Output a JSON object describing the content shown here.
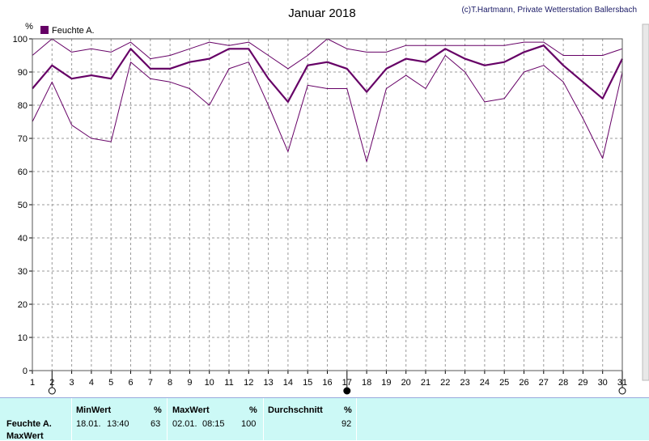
{
  "title": "Januar 2018",
  "credit": "(c)T.Hartmann, Private Wetterstation Ballersbach",
  "unit_label": "%",
  "legend": {
    "label": "Feuchte A.",
    "color": "#660066"
  },
  "chart_data": {
    "type": "line",
    "x": [
      1,
      2,
      3,
      4,
      5,
      6,
      7,
      8,
      9,
      10,
      11,
      12,
      13,
      14,
      15,
      16,
      17,
      18,
      19,
      20,
      21,
      22,
      23,
      24,
      25,
      26,
      27,
      28,
      29,
      30,
      31
    ],
    "ylim": [
      0,
      100
    ],
    "yticks": [
      0,
      10,
      20,
      30,
      40,
      50,
      60,
      70,
      80,
      90,
      100
    ],
    "grid": true,
    "legend_position": "top-left",
    "series": [
      {
        "name": "Feuchte A.",
        "role": "mean",
        "color": "#660066",
        "values": [
          85,
          92,
          88,
          89,
          88,
          97,
          91,
          91,
          93,
          94,
          97,
          97,
          88,
          81,
          92,
          93,
          91,
          84,
          91,
          94,
          93,
          97,
          94,
          92,
          93,
          96,
          98,
          92,
          87,
          82,
          94
        ]
      },
      {
        "role": "max",
        "color": "#660066",
        "values": [
          95,
          100,
          96,
          97,
          96,
          99,
          94,
          95,
          97,
          99,
          98,
          99,
          95,
          91,
          95,
          100,
          97,
          96,
          96,
          98,
          98,
          98,
          98,
          98,
          98,
          99,
          99,
          95,
          95,
          95,
          97
        ]
      },
      {
        "role": "min",
        "color": "#660066",
        "values": [
          75,
          87,
          74,
          70,
          69,
          93,
          88,
          87,
          85,
          80,
          91,
          93,
          80,
          66,
          86,
          85,
          85,
          63,
          85,
          89,
          85,
          95,
          90,
          81,
          82,
          90,
          92,
          87,
          76,
          64,
          90
        ]
      }
    ],
    "markers": [
      {
        "day": 2,
        "symbol": "open-circle"
      },
      {
        "day": 17,
        "symbol": "filled-circle"
      },
      {
        "day": 31,
        "symbol": "open-circle"
      }
    ]
  },
  "stats": {
    "row_label": "Feuchte A.",
    "row_label2": "MaxWert",
    "min": {
      "header": "MinWert",
      "unit": "%",
      "date": "18.01.",
      "time": "13:40",
      "value": "63"
    },
    "max": {
      "header": "MaxWert",
      "unit": "%",
      "date": "02.01.",
      "time": "08:15",
      "value": "100"
    },
    "avg": {
      "header": "Durchschnitt",
      "unit": "%",
      "value": "92"
    }
  }
}
